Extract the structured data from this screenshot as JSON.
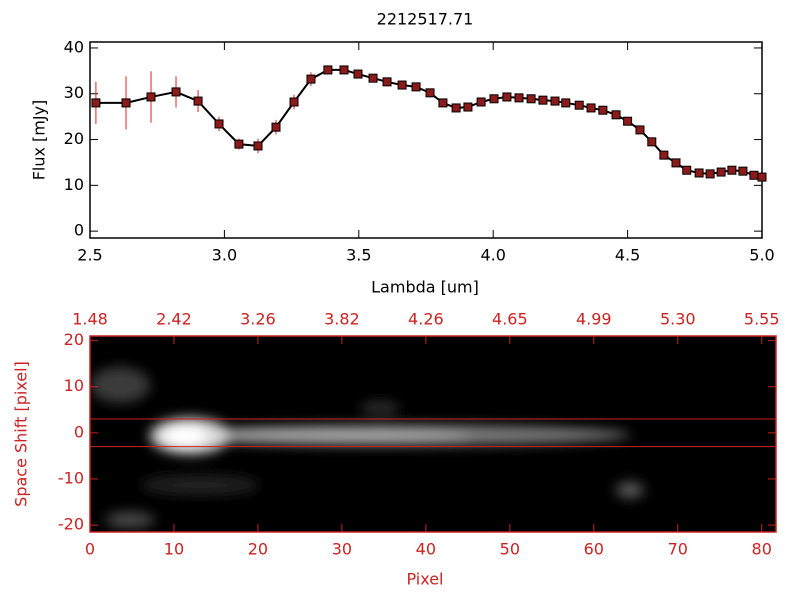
{
  "chart_data": [
    {
      "type": "line",
      "title": "2212517.71",
      "xlabel": "Lambda [um]",
      "ylabel": "Flux [mJy]",
      "xlim": [
        2.5,
        5.0
      ],
      "ylim": [
        -1.5,
        41.3
      ],
      "xticks": [
        {
          "value": 2.5,
          "label": "2.5"
        },
        {
          "value": 3.0,
          "label": "3.0"
        },
        {
          "value": 3.5,
          "label": "3.5"
        },
        {
          "value": 4.0,
          "label": "4.0"
        },
        {
          "value": 4.5,
          "label": "4.5"
        },
        {
          "value": 5.0,
          "label": "5.0"
        }
      ],
      "yticks": [
        0,
        10,
        20,
        30,
        40
      ],
      "color": "#000000",
      "marker_color": "#8b1a1a",
      "error_color": "#e02020",
      "x": [
        2.522,
        2.634,
        2.727,
        2.82,
        2.902,
        2.98,
        3.054,
        3.125,
        3.192,
        3.259,
        3.322,
        3.385,
        3.445,
        3.497,
        3.553,
        3.605,
        3.661,
        3.713,
        3.765,
        3.813,
        3.862,
        3.906,
        3.955,
        4.003,
        4.051,
        4.096,
        4.141,
        4.185,
        4.23,
        4.27,
        4.32,
        4.364,
        4.408,
        4.457,
        4.5,
        4.546,
        4.59,
        4.635,
        4.68,
        4.72,
        4.766,
        4.807,
        4.848,
        4.888,
        4.929,
        4.97,
        5.0
      ],
      "series": [
        {
          "color": "#000000",
          "values": [
            28.0,
            28.0,
            29.3,
            30.4,
            28.4,
            23.4,
            19.0,
            18.6,
            22.7,
            28.2,
            33.2,
            35.2,
            35.2,
            34.3,
            33.4,
            32.6,
            31.9,
            31.5,
            30.2,
            28.0,
            26.9,
            27.1,
            28.2,
            28.9,
            29.3,
            29.1,
            28.9,
            28.6,
            28.4,
            28.0,
            27.5,
            26.9,
            26.4,
            25.4,
            24.0,
            22.1,
            19.5,
            16.6,
            14.9,
            13.3,
            12.7,
            12.5,
            12.9,
            13.3,
            13.1,
            12.2,
            11.8
          ],
          "errors": [
            4.6,
            5.8,
            5.6,
            3.4,
            2.4,
            1.6,
            1.2,
            1.6,
            1.6,
            1.6,
            1.5,
            1.0,
            0.8,
            0.7,
            0.7,
            0.7,
            0.7,
            0.7,
            0.7,
            0.7,
            0.7,
            0.7,
            0.7,
            0.7,
            0.7,
            0.7,
            0.7,
            0.7,
            0.7,
            0.7,
            0.7,
            0.7,
            0.7,
            0.7,
            0.7,
            0.7,
            0.7,
            0.7,
            0.7,
            0.7,
            0.7,
            0.7,
            0.7,
            0.7,
            0.7,
            0.7,
            0.7
          ]
        }
      ]
    },
    {
      "type": "image",
      "xlabel": "Pixel",
      "ylabel": "Space Shift [pixel]",
      "color": "#cc2222",
      "xlim": [
        0,
        81.7
      ],
      "ylim": [
        -21.5,
        21
      ],
      "xticks": [
        0,
        10,
        20,
        30,
        40,
        50,
        60,
        70,
        80
      ],
      "yticks": [
        -20,
        -10,
        0,
        10,
        20
      ],
      "x2ticks": [
        {
          "value": 0,
          "label": "1.48"
        },
        {
          "value": 10,
          "label": "2.42"
        },
        {
          "value": 20,
          "label": "3.26"
        },
        {
          "value": 30,
          "label": "3.82"
        },
        {
          "value": 40,
          "label": "4.26"
        },
        {
          "value": 50,
          "label": "4.65"
        },
        {
          "value": 60,
          "label": "4.99"
        },
        {
          "value": 70,
          "label": "5.30"
        },
        {
          "value": 80,
          "label": "5.55"
        }
      ],
      "hlines": [
        3,
        -3
      ]
    }
  ]
}
